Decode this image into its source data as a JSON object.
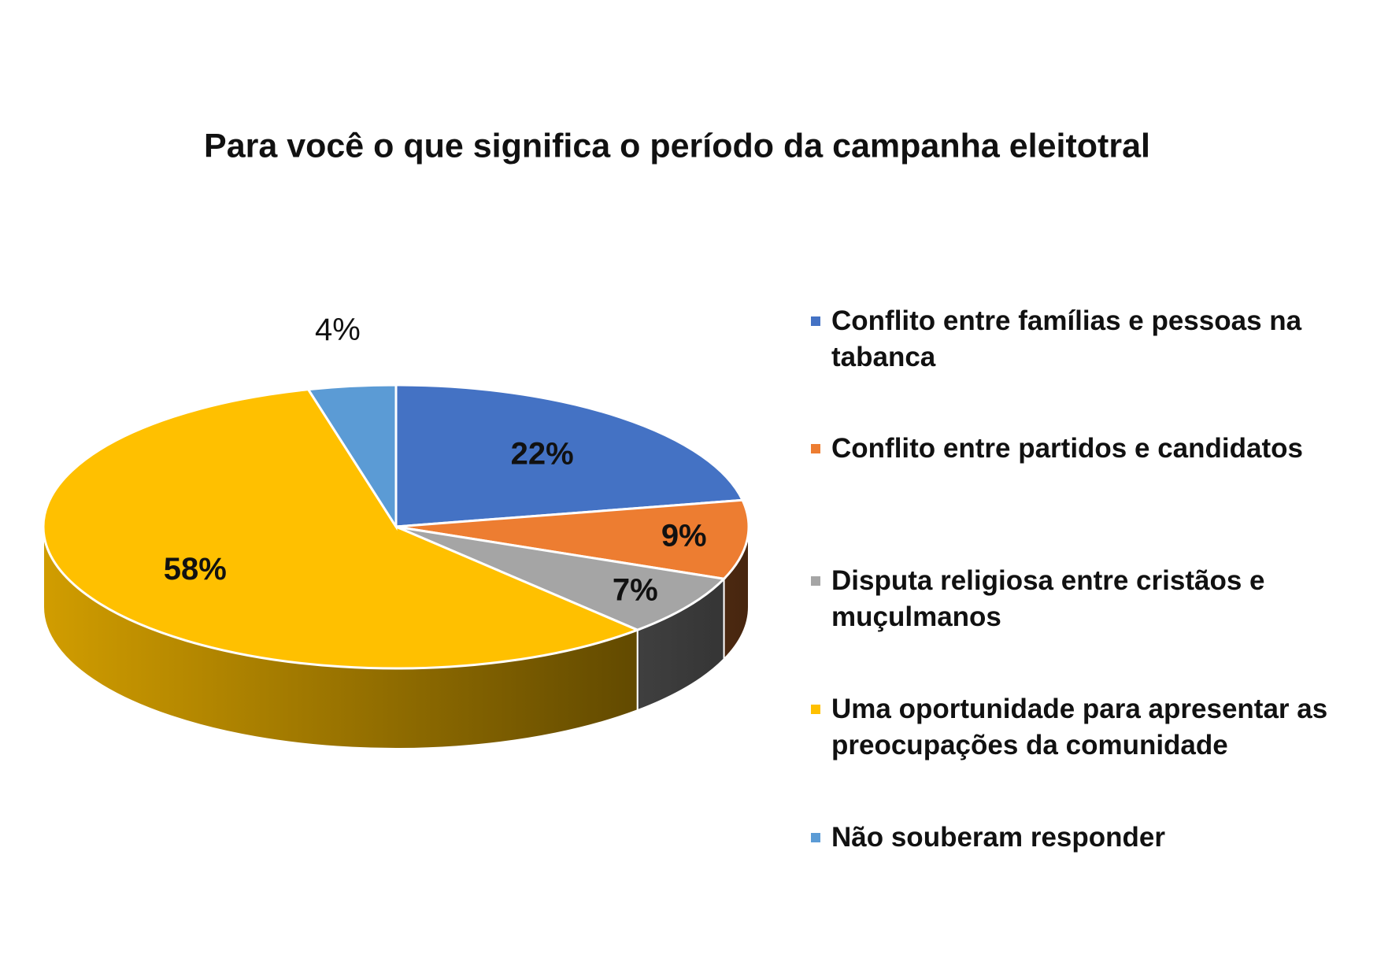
{
  "chart_data": {
    "type": "pie3d",
    "title": "Para você o que significa o período da campanha eleitotral",
    "categories": [
      "Conflito entre famílias e pessoas na tabanca",
      "Conflito entre partidos e candidatos",
      "Disputa religiosa entre cristãos e muçulmanos",
      "Uma oportunidade para apresentar as preocupações da comunidade",
      "Não souberam responder"
    ],
    "values": [
      22,
      9,
      7,
      58,
      4
    ],
    "value_labels": [
      "22%",
      "9%",
      "7%",
      "58%",
      "4%"
    ],
    "colors": [
      "#4472c4",
      "#ed7d31",
      "#a5a5a5",
      "#ffc000",
      "#5b9bd5"
    ],
    "legend": "right"
  }
}
